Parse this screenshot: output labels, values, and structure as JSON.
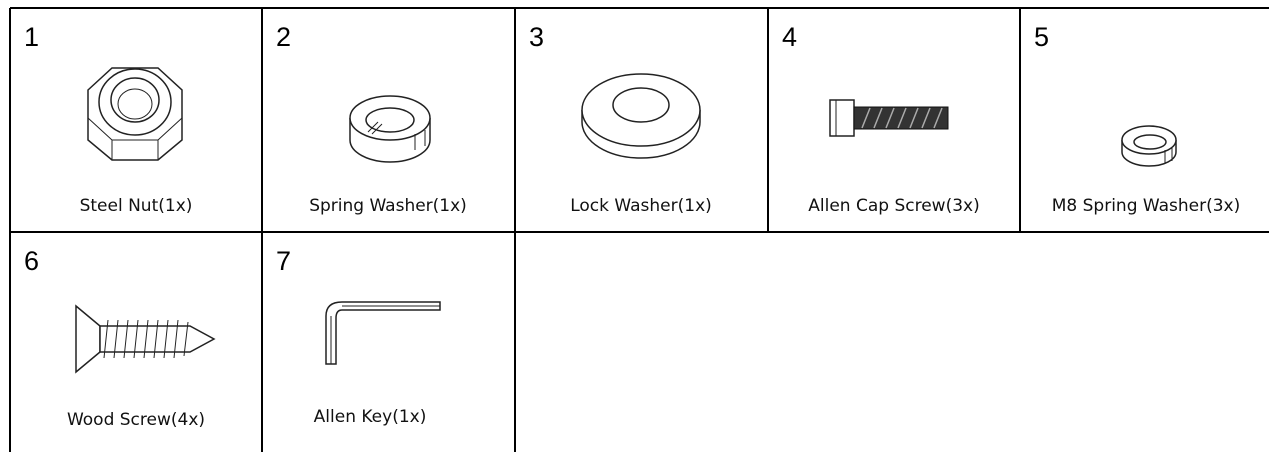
{
  "parts": [
    {
      "number": "1",
      "label": "Steel Nut(1x)"
    },
    {
      "number": "2",
      "label": "Spring Washer(1x)"
    },
    {
      "number": "3",
      "label": "Lock Washer(1x)"
    },
    {
      "number": "4",
      "label": "Allen Cap Screw(3x)"
    },
    {
      "number": "5",
      "label": "M8 Spring Washer(3x)"
    },
    {
      "number": "6",
      "label": "Wood Screw(4x)"
    },
    {
      "number": "7",
      "label": "Allen Key(1x)"
    }
  ]
}
